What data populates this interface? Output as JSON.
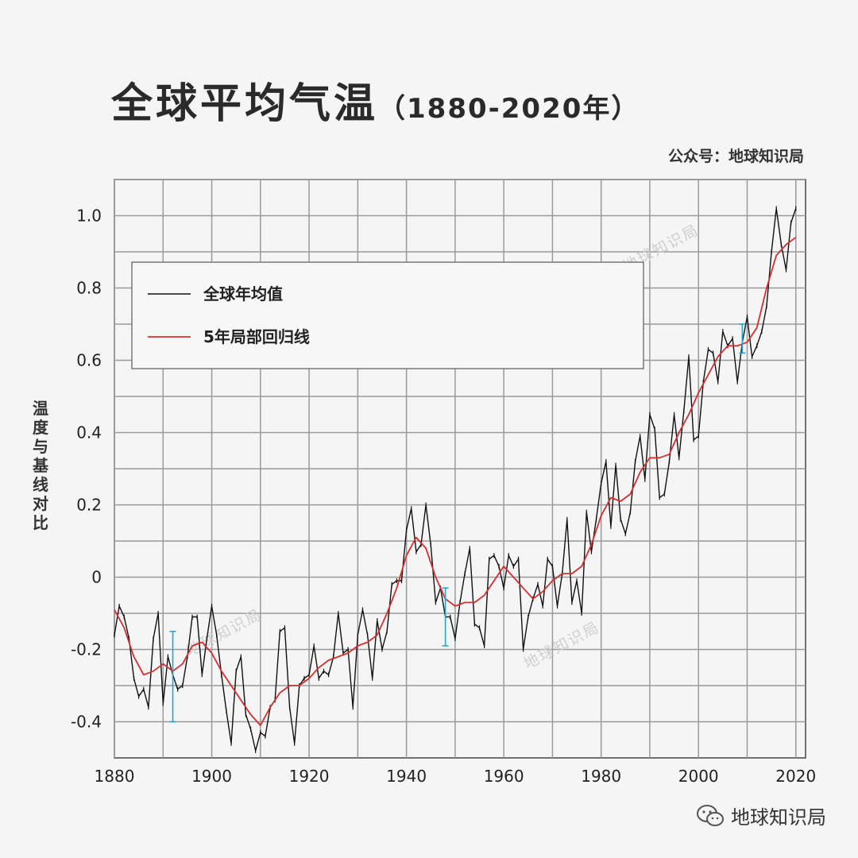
{
  "title": "全球平均气温",
  "title_years": "（1880-2020年）",
  "source": "公众号：地球知识局",
  "footer": "地球知识局",
  "watermark": "地球知识局",
  "colors": {
    "annual": "#111111",
    "smooth": "#d32f2f",
    "error_bar": "#2aa5c9",
    "grid": "#9a9a9a",
    "background": "#f5f5f5"
  },
  "chart_data": {
    "type": "line",
    "title": "全球平均气温（1880-2020年）",
    "xlabel": "",
    "ylabel": "温度与基线对比",
    "xlim": [
      1880,
      2022
    ],
    "ylim": [
      -0.5,
      1.1
    ],
    "xticks": [
      1880,
      1900,
      1920,
      1940,
      1960,
      1980,
      2000,
      2020
    ],
    "yticks": [
      -0.4,
      -0.2,
      0,
      0.2,
      0.4,
      0.6,
      0.8,
      1.0
    ],
    "ytick_labels": [
      "-0.4",
      "-0.2",
      "0",
      "0.2",
      "0.4",
      "0.6",
      "0.8",
      "1.0"
    ],
    "legend_position": "top-left",
    "series": [
      {
        "name": "全球年均值",
        "x": [
          1880,
          1881,
          1882,
          1883,
          1884,
          1885,
          1886,
          1887,
          1888,
          1889,
          1890,
          1891,
          1892,
          1893,
          1894,
          1895,
          1896,
          1897,
          1898,
          1899,
          1900,
          1901,
          1902,
          1903,
          1904,
          1905,
          1906,
          1907,
          1908,
          1909,
          1910,
          1911,
          1912,
          1913,
          1914,
          1915,
          1916,
          1917,
          1918,
          1919,
          1920,
          1921,
          1922,
          1923,
          1924,
          1925,
          1926,
          1927,
          1928,
          1929,
          1930,
          1931,
          1932,
          1933,
          1934,
          1935,
          1936,
          1937,
          1938,
          1939,
          1940,
          1941,
          1942,
          1943,
          1944,
          1945,
          1946,
          1947,
          1948,
          1949,
          1950,
          1951,
          1952,
          1953,
          1954,
          1955,
          1956,
          1957,
          1958,
          1959,
          1960,
          1961,
          1962,
          1963,
          1964,
          1965,
          1966,
          1967,
          1968,
          1969,
          1970,
          1971,
          1972,
          1973,
          1974,
          1975,
          1976,
          1977,
          1978,
          1979,
          1980,
          1981,
          1982,
          1983,
          1984,
          1985,
          1986,
          1987,
          1988,
          1989,
          1990,
          1991,
          1992,
          1993,
          1994,
          1995,
          1996,
          1997,
          1998,
          1999,
          2000,
          2001,
          2002,
          2003,
          2004,
          2005,
          2006,
          2007,
          2008,
          2009,
          2010,
          2011,
          2012,
          2013,
          2014,
          2015,
          2016,
          2017,
          2018,
          2019,
          2020
        ],
        "values": [
          -0.16,
          -0.08,
          -0.11,
          -0.17,
          -0.28,
          -0.33,
          -0.31,
          -0.36,
          -0.17,
          -0.1,
          -0.35,
          -0.22,
          -0.27,
          -0.31,
          -0.3,
          -0.22,
          -0.11,
          -0.11,
          -0.27,
          -0.17,
          -0.08,
          -0.16,
          -0.27,
          -0.37,
          -0.46,
          -0.26,
          -0.22,
          -0.38,
          -0.42,
          -0.48,
          -0.43,
          -0.44,
          -0.36,
          -0.34,
          -0.15,
          -0.14,
          -0.36,
          -0.46,
          -0.3,
          -0.28,
          -0.27,
          -0.19,
          -0.28,
          -0.26,
          -0.27,
          -0.22,
          -0.1,
          -0.21,
          -0.2,
          -0.36,
          -0.16,
          -0.09,
          -0.16,
          -0.28,
          -0.12,
          -0.2,
          -0.15,
          -0.02,
          -0.01,
          -0.01,
          0.13,
          0.19,
          0.07,
          0.09,
          0.2,
          0.09,
          -0.07,
          -0.03,
          -0.11,
          -0.11,
          -0.17,
          -0.07,
          0.01,
          0.08,
          -0.13,
          -0.14,
          -0.19,
          0.05,
          0.06,
          0.03,
          -0.03,
          0.06,
          0.03,
          0.05,
          -0.2,
          -0.11,
          -0.06,
          -0.02,
          -0.08,
          0.05,
          0.03,
          -0.08,
          0.01,
          0.16,
          -0.07,
          -0.01,
          -0.1,
          0.18,
          0.07,
          0.16,
          0.26,
          0.32,
          0.14,
          0.31,
          0.16,
          0.12,
          0.18,
          0.32,
          0.39,
          0.27,
          0.45,
          0.41,
          0.22,
          0.23,
          0.32,
          0.45,
          0.33,
          0.46,
          0.61,
          0.38,
          0.39,
          0.54,
          0.63,
          0.62,
          0.54,
          0.68,
          0.64,
          0.66,
          0.54,
          0.65,
          0.72,
          0.61,
          0.64,
          0.68,
          0.75,
          0.9,
          1.02,
          0.92,
          0.85,
          0.98,
          1.02
        ]
      },
      {
        "name": "5年局部回归线",
        "x": [
          1880,
          1882,
          1884,
          1886,
          1888,
          1890,
          1892,
          1894,
          1896,
          1898,
          1900,
          1902,
          1904,
          1906,
          1908,
          1910,
          1912,
          1914,
          1916,
          1918,
          1920,
          1922,
          1924,
          1926,
          1928,
          1930,
          1932,
          1934,
          1936,
          1938,
          1940,
          1942,
          1944,
          1946,
          1948,
          1950,
          1952,
          1954,
          1956,
          1958,
          1960,
          1962,
          1964,
          1966,
          1968,
          1970,
          1972,
          1974,
          1976,
          1978,
          1980,
          1982,
          1984,
          1986,
          1988,
          1990,
          1992,
          1994,
          1996,
          1998,
          2000,
          2002,
          2004,
          2006,
          2008,
          2010,
          2012,
          2014,
          2016,
          2018,
          2020
        ],
        "values": [
          -0.09,
          -0.14,
          -0.22,
          -0.27,
          -0.26,
          -0.24,
          -0.26,
          -0.24,
          -0.19,
          -0.18,
          -0.21,
          -0.26,
          -0.3,
          -0.34,
          -0.38,
          -0.41,
          -0.36,
          -0.32,
          -0.3,
          -0.3,
          -0.28,
          -0.25,
          -0.23,
          -0.22,
          -0.21,
          -0.19,
          -0.18,
          -0.16,
          -0.1,
          -0.03,
          0.06,
          0.11,
          0.08,
          0.0,
          -0.06,
          -0.08,
          -0.07,
          -0.07,
          -0.05,
          -0.01,
          0.03,
          0.0,
          -0.03,
          -0.06,
          -0.04,
          -0.01,
          0.01,
          0.01,
          0.03,
          0.09,
          0.17,
          0.22,
          0.21,
          0.23,
          0.29,
          0.33,
          0.33,
          0.34,
          0.4,
          0.45,
          0.51,
          0.56,
          0.61,
          0.64,
          0.64,
          0.65,
          0.69,
          0.8,
          0.89,
          0.92,
          0.94
        ]
      }
    ],
    "error_bars": [
      {
        "x": 1892,
        "low": -0.4,
        "high": -0.15
      },
      {
        "x": 1948,
        "low": -0.19,
        "high": -0.03
      },
      {
        "x": 2009,
        "low": 0.62,
        "high": 0.7
      }
    ]
  }
}
